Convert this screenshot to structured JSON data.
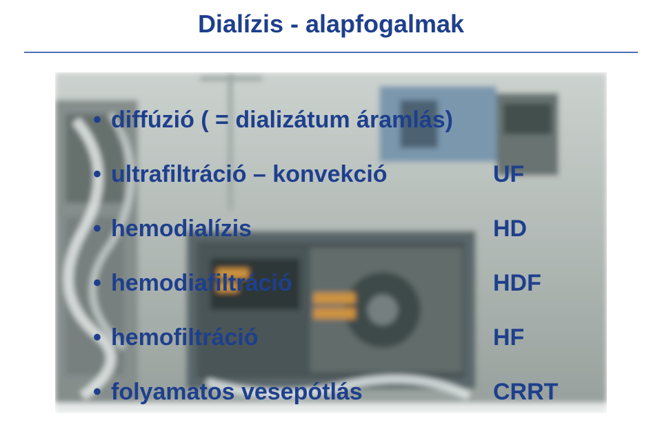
{
  "title": {
    "text": "Dialízis - alapfogalmak",
    "color": "#1e3f8c",
    "fontsize": 36
  },
  "underline": {
    "color": "#4a6fb3"
  },
  "content": {
    "text_color": "#1e3f8c",
    "fontsize": 34,
    "bullet_char": "•",
    "row_gap": 40,
    "rows": [
      {
        "lhs": "diffúzió ( = dializátum áramlás)",
        "rhs": ""
      },
      {
        "lhs": "ultrafiltráció – konvekció",
        "rhs": "UF"
      },
      {
        "lhs": "hemodialízis",
        "rhs": "HD"
      },
      {
        "lhs": "hemodiafiltráció",
        "rhs": "HDF"
      },
      {
        "lhs": "hemofiltráció",
        "rhs": "HF"
      },
      {
        "lhs": "folyamatos vesepótlás",
        "rhs": "CRRT"
      }
    ]
  },
  "background": {
    "base_color": "#9da8a6",
    "wash_color": "#bcc5c2",
    "machine_color": "#4d5b5e",
    "tube_color": "#dfe6e6",
    "panel_color": "#2b3638",
    "amber": "#c98a2e",
    "blue_unit": "#6f8fa8"
  }
}
